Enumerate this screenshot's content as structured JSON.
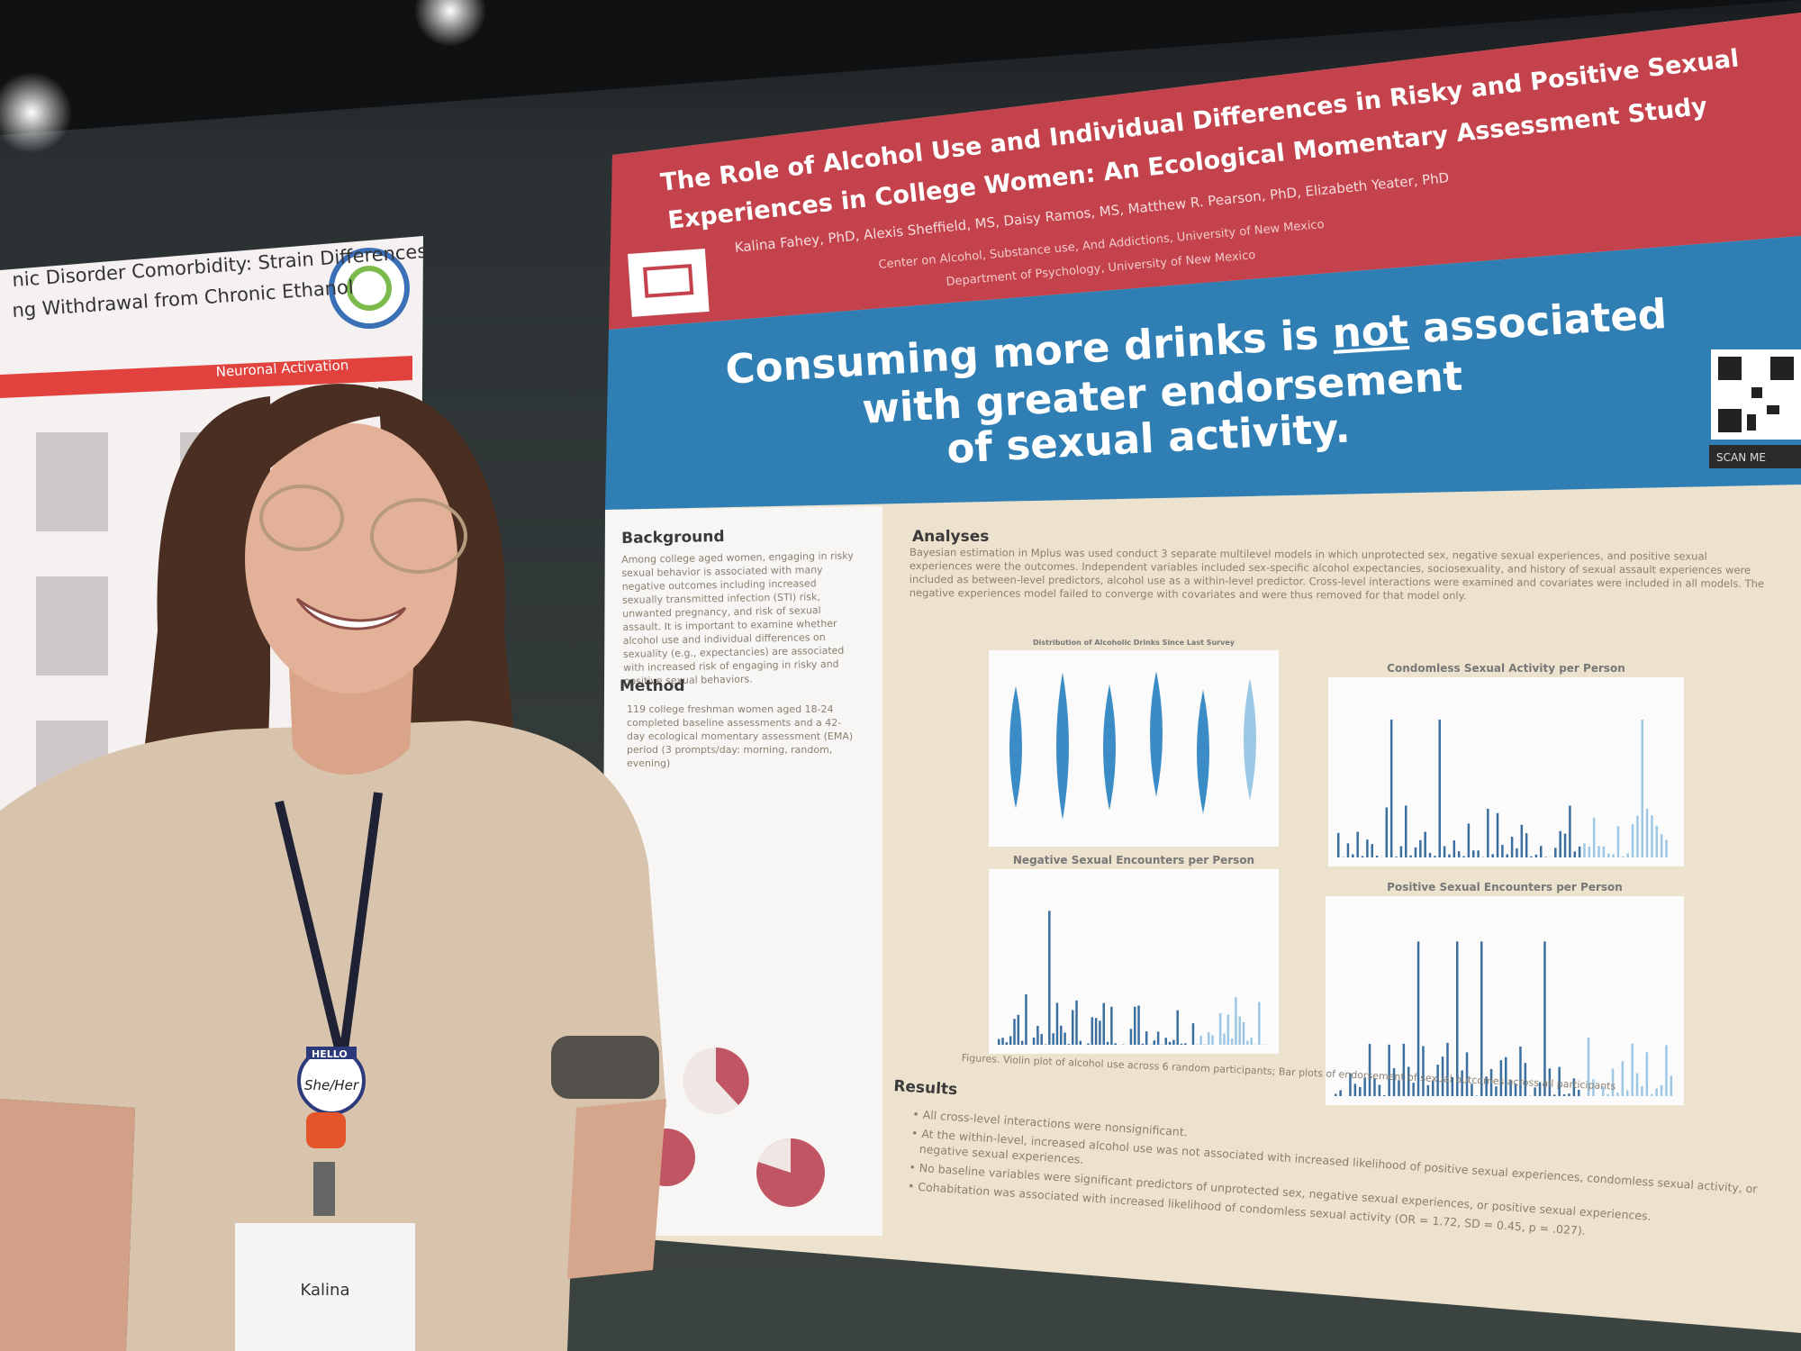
{
  "left_poster": {
    "title_lines": [
      "nic Disorder Comorbidity: Strain Differences",
      "ng Withdrawal from Chronic Ethanol"
    ],
    "section": "Neuronal Activation"
  },
  "poster": {
    "title_lines": [
      "The Role of Alcohol Use and Individual Differences in Risky and Positive Sexual",
      "Experiences in College Women: An Ecological Momentary Assessment Study"
    ],
    "authors": "Kalina Fahey, PhD, Alexis Sheffield, MS, Daisy Ramos, MS, Matthew R. Pearson, PhD, Elizabeth Yeater, PhD",
    "affiliations": [
      "Center on Alcohol, Substance use, And Addictions, University of New Mexico",
      "Department of Psychology, University of New Mexico"
    ],
    "headline": {
      "line1_before": "Consuming more drinks is ",
      "emphasis": "not",
      "line1_after": " associated",
      "line2": "with greater endorsement",
      "line3": "of sexual activity."
    },
    "qr_label": "SCAN ME",
    "background": {
      "heading": "Background",
      "text": "Among college aged women, engaging in risky sexual behavior is associated with many negative outcomes including increased sexually transmitted infection (STI) risk, unwanted pregnancy, and risk of sexual assault. It is important to examine whether alcohol use and individual differences on sexuality (e.g., expectancies) are associated with increased risk of engaging in risky and positive sexual behaviors."
    },
    "method": {
      "heading": "Method",
      "text": "119 college freshman women aged 18-24 completed baseline assessments and a 42-day ecological momentary assessment (EMA) period (3 prompts/day: morning, random, evening)"
    },
    "analyses": {
      "heading": "Analyses",
      "text": "Bayesian estimation in Mplus was used conduct 3 separate multilevel models in which unprotected sex, negative sexual experiences, and positive sexual experiences were the outcomes. Independent variables included sex-specific alcohol expectancies, sociosexuality, and history of sexual assault experiences were included as between-level predictors, alcohol use as a within-level predictor. Cross-level interactions were examined and covariates were included in all models. The negative experiences model failed to converge with covariates and were thus removed for that model only."
    },
    "figures": [
      "Distribution of Alcoholic Drinks Since Last Survey",
      "Condomless Sexual Activity per Person",
      "Negative Sexual Encounters per Person",
      "Positive Sexual Encounters per Person"
    ],
    "figure_caption": "Figures. Violin plot of alcohol use across 6 random participants; Bar plots of endorsement of sexual outcomes across all participants",
    "results": {
      "heading": "Results",
      "bullets": [
        "All cross-level interactions were nonsignificant.",
        "At the within-level, increased alcohol use was not associated with increased likelihood of positive sexual experiences, condomless sexual activity, or negative sexual experiences.",
        "No baseline variables were significant predictors of unprotected sex, negative sexual experiences, or positive sexual experiences.",
        "Cohabitation was associated with increased likelihood of condomless sexual activity (OR = 1.72, SD = 0.45, p = .027)."
      ]
    }
  },
  "badge": {
    "hello": "HELLO",
    "pronouns": "She/Her",
    "name": "Kalina"
  }
}
